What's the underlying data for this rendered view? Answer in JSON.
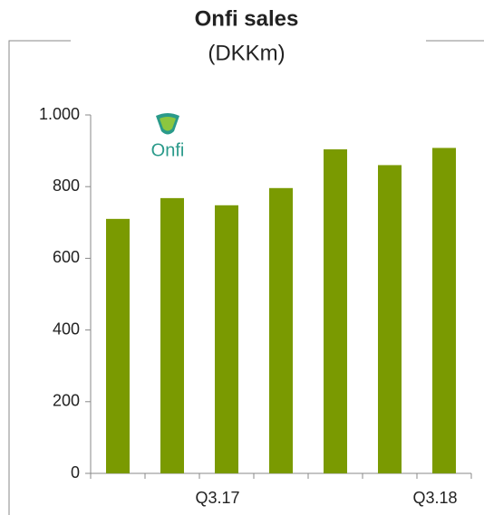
{
  "chart_data": {
    "type": "bar",
    "title": "Onfi sales",
    "subtitle": "(DKKm)",
    "logo_text": "Onfi",
    "categories": [
      null,
      null,
      "Q3.17",
      null,
      null,
      null,
      "Q3.18"
    ],
    "values": [
      710,
      768,
      748,
      796,
      904,
      860,
      908
    ],
    "color": "#7a9a01",
    "ylim": [
      0,
      1000
    ],
    "yticks": [
      0,
      200,
      400,
      600,
      800,
      {
        "value": 1000,
        "label": "1.000"
      }
    ],
    "grid": false
  }
}
